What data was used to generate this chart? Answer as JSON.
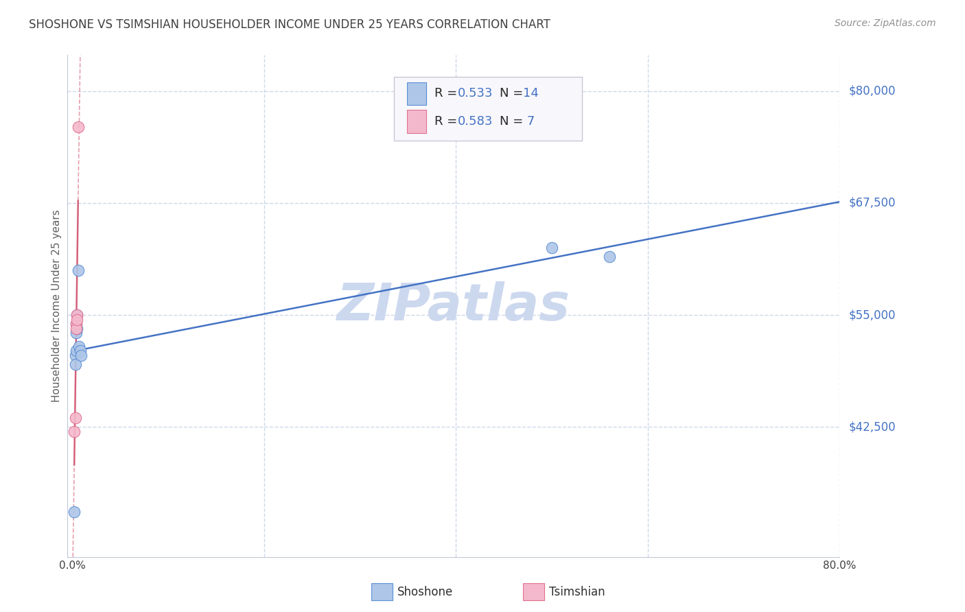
{
  "title": "SHOSHONE VS TSIMSHIAN HOUSEHOLDER INCOME UNDER 25 YEARS CORRELATION CHART",
  "source": "Source: ZipAtlas.com",
  "ylabel": "Householder Income Under 25 years",
  "watermark": "ZIPatlas",
  "xlim": [
    -0.005,
    0.8
  ],
  "ylim": [
    28000,
    84000
  ],
  "yticks": [
    42500,
    55000,
    67500,
    80000
  ],
  "ytick_labels": [
    "$42,500",
    "$55,000",
    "$67,500",
    "$80,000"
  ],
  "shoshone_R": 0.533,
  "shoshone_N": 14,
  "tsimshian_R": 0.583,
  "tsimshian_N": 7,
  "shoshone_color": "#aec6e8",
  "tsimshian_color": "#f4b8cc",
  "shoshone_edge_color": "#5b8fd4",
  "tsimshian_edge_color": "#e07090",
  "shoshone_line_color": "#4472c4",
  "tsimshian_line_color": "#d4607a",
  "shoshone_x": [
    0.002,
    0.003,
    0.003,
    0.004,
    0.004,
    0.004,
    0.005,
    0.005,
    0.006,
    0.007,
    0.008,
    0.009,
    0.5,
    0.56
  ],
  "shoshone_y": [
    33000,
    50500,
    49500,
    54000,
    53000,
    51000,
    55000,
    53500,
    60000,
    51500,
    51000,
    50500,
    62500,
    61500
  ],
  "tsimshian_x": [
    0.002,
    0.003,
    0.004,
    0.004,
    0.005,
    0.005,
    0.006
  ],
  "tsimshian_y": [
    42000,
    43500,
    54000,
    53500,
    55000,
    54500,
    76000
  ],
  "background_color": "#ffffff",
  "grid_color": "#c8d4e8",
  "title_color": "#404040",
  "source_color": "#909090",
  "ylabel_color": "#606060",
  "watermark_color": "#ccd8ee",
  "legend_box_color": "#f8f8fc",
  "legend_border_color": "#c8c8d8",
  "axis_color": "#c0c8d8",
  "label_color": "#4472c4"
}
